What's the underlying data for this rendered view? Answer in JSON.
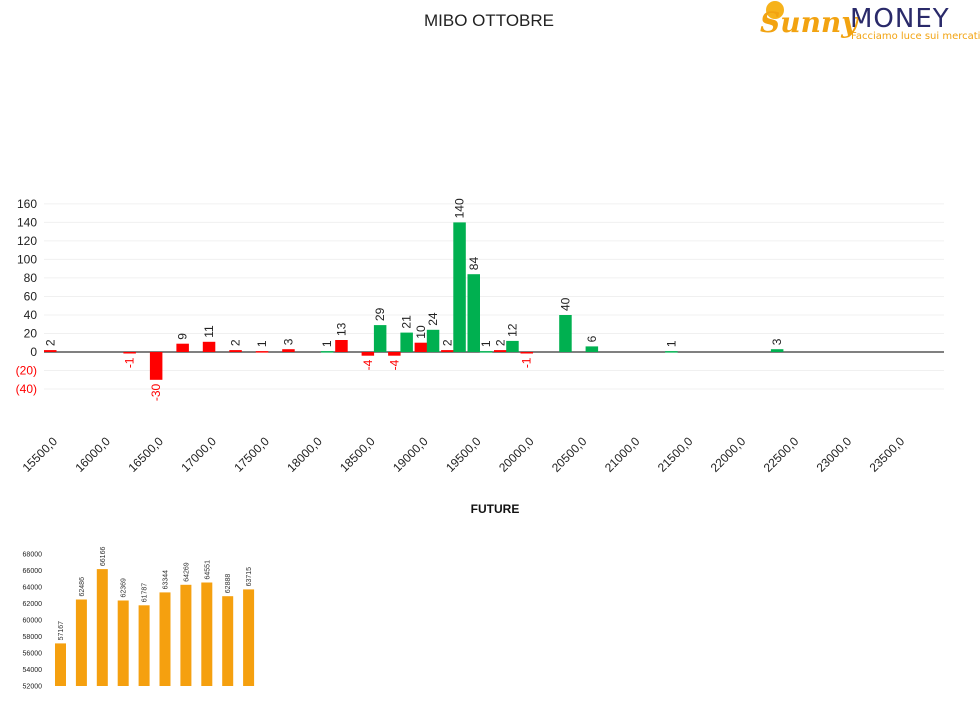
{
  "logo": {
    "brand_part1": "Sunny",
    "brand_part2": "MONEY",
    "tagline": "Facciamo luce sui mercati"
  },
  "chart_data": [
    {
      "type": "bar",
      "title": "MIBO OTTOBRE",
      "ylim": [
        -40,
        160
      ],
      "yticks": [
        {
          "value": 160,
          "label": "160"
        },
        {
          "value": 140,
          "label": "140"
        },
        {
          "value": 120,
          "label": "120"
        },
        {
          "value": 100,
          "label": "100"
        },
        {
          "value": 80,
          "label": "80"
        },
        {
          "value": 60,
          "label": "60"
        },
        {
          "value": 40,
          "label": "40"
        },
        {
          "value": 20,
          "label": "20"
        },
        {
          "value": 0,
          "label": "0"
        },
        {
          "value": -20,
          "label": "(20)"
        },
        {
          "value": -40,
          "label": "(40)"
        }
      ],
      "grid": true,
      "colors": {
        "positive_red": "#ff0000",
        "green": "#00b050",
        "negative_label": "#ff0000"
      },
      "strike_step": 250,
      "strike_range": [
        15500,
        23750
      ],
      "xtick_labels": [
        "15500,0",
        "16000,0",
        "16500,0",
        "17000,0",
        "17500,0",
        "18000,0",
        "18500,0",
        "19000,0",
        "19500,0",
        "20000,0",
        "20500,0",
        "21000,0",
        "21500,0",
        "22000,0",
        "22500,0",
        "23000,0",
        "23500,0"
      ],
      "series": [
        {
          "color": "#ff0000",
          "points": [
            {
              "strike": 15500,
              "value": 2
            },
            {
              "strike": 16250,
              "value": -1
            },
            {
              "strike": 16500,
              "value": -30
            },
            {
              "strike": 16750,
              "value": 9
            },
            {
              "strike": 17000,
              "value": 11
            },
            {
              "strike": 17250,
              "value": 2
            },
            {
              "strike": 17500,
              "value": 1
            },
            {
              "strike": 17750,
              "value": 3
            },
            {
              "strike": 18250,
              "value": 13
            },
            {
              "strike": 18500,
              "value": -4
            },
            {
              "strike": 18750,
              "value": -4
            },
            {
              "strike": 19000,
              "value": 10
            },
            {
              "strike": 19250,
              "value": 2
            },
            {
              "strike": 19750,
              "value": 2
            },
            {
              "strike": 20000,
              "value": -1
            }
          ]
        },
        {
          "color": "#00b050",
          "points": [
            {
              "strike": 18000,
              "value": 1
            },
            {
              "strike": 18500,
              "value": 29
            },
            {
              "strike": 18750,
              "value": 21
            },
            {
              "strike": 19000,
              "value": 24
            },
            {
              "strike": 19250,
              "value": 140
            },
            {
              "strike": 19500,
              "value": 1
            },
            {
              "strike": 19500,
              "value": 84,
              "slot": "left"
            },
            {
              "strike": 19750,
              "value": 12
            },
            {
              "strike": 20250,
              "value": 40
            },
            {
              "strike": 20500,
              "value": 6
            },
            {
              "strike": 21250,
              "value": 1
            },
            {
              "strike": 22250,
              "value": 3
            }
          ]
        }
      ]
    },
    {
      "type": "bar",
      "title": "FUTURE",
      "ylim": [
        52000,
        68000
      ],
      "yticks": [
        "68000",
        "66000",
        "64000",
        "62000",
        "60000",
        "58000",
        "56000",
        "54000",
        "52000"
      ],
      "values": [
        57167,
        62486,
        66166,
        62369,
        61787,
        63344,
        64269,
        64551,
        62888,
        63715
      ],
      "color": "#f5a00f"
    }
  ]
}
